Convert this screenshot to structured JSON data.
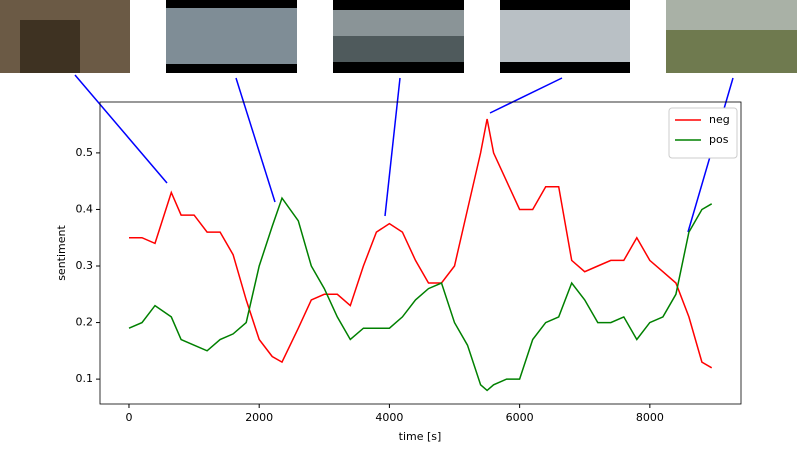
{
  "chart_data": {
    "type": "line",
    "xlabel": "time [s]",
    "ylabel": "sentiment",
    "x": [
      0,
      200,
      400,
      650,
      800,
      1000,
      1200,
      1400,
      1600,
      1800,
      2000,
      2200,
      2350,
      2600,
      2800,
      3000,
      3200,
      3400,
      3600,
      3800,
      4000,
      4200,
      4400,
      4600,
      4800,
      5000,
      5200,
      5400,
      5500,
      5600,
      5800,
      6000,
      6200,
      6400,
      6600,
      6800,
      7000,
      7200,
      7400,
      7600,
      7800,
      8000,
      8200,
      8400,
      8600,
      8800,
      8950
    ],
    "series": [
      {
        "name": "neg",
        "color": "#ff0000",
        "values": [
          0.35,
          0.35,
          0.34,
          0.43,
          0.39,
          0.39,
          0.36,
          0.36,
          0.32,
          0.24,
          0.17,
          0.14,
          0.13,
          0.19,
          0.24,
          0.25,
          0.25,
          0.23,
          0.3,
          0.36,
          0.375,
          0.36,
          0.31,
          0.27,
          0.27,
          0.3,
          0.4,
          0.5,
          0.56,
          0.5,
          0.45,
          0.4,
          0.4,
          0.44,
          0.44,
          0.31,
          0.29,
          0.3,
          0.31,
          0.31,
          0.35,
          0.31,
          0.29,
          0.27,
          0.21,
          0.13,
          0.12
        ]
      },
      {
        "name": "pos",
        "color": "#008000",
        "values": [
          0.19,
          0.2,
          0.23,
          0.21,
          0.17,
          0.16,
          0.15,
          0.17,
          0.18,
          0.2,
          0.3,
          0.37,
          0.42,
          0.38,
          0.3,
          0.26,
          0.21,
          0.17,
          0.19,
          0.19,
          0.19,
          0.21,
          0.24,
          0.26,
          0.27,
          0.2,
          0.16,
          0.09,
          0.08,
          0.09,
          0.1,
          0.1,
          0.17,
          0.2,
          0.21,
          0.27,
          0.24,
          0.2,
          0.2,
          0.21,
          0.17,
          0.2,
          0.21,
          0.25,
          0.36,
          0.4,
          0.41
        ]
      }
    ],
    "xlim": [
      -445,
      9400
    ],
    "xticks": [
      0,
      2000,
      4000,
      6000,
      8000
    ],
    "ylim": [
      0.056,
      0.59
    ],
    "yticks": [
      0.1,
      0.2,
      0.3,
      0.4,
      0.5
    ],
    "legend": "upper right"
  }
}
